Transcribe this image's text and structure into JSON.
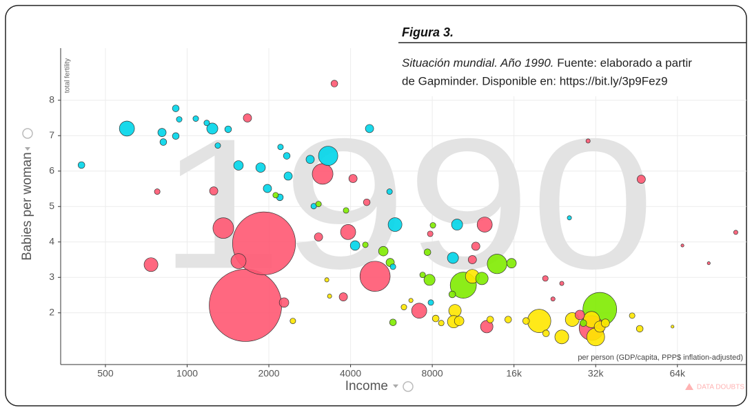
{
  "chart_data": {
    "type": "bubble",
    "figure_label": "Figura 3.",
    "caption_italic": "Situación mundial. Año 1990.",
    "caption_line1": "Fuente: elaborado a partir",
    "caption_line2": "de Gapminder. Disponible en: https://bit.ly/3p9Fez9",
    "watermark": "1990",
    "y_label": "Babies per woman",
    "y_sublabel": "total fertility",
    "x_label": "Income",
    "x_sublabel": "per person (GDP/capita, PPP$ inflation-adjusted)",
    "data_doubts": "DATA DOUBTS",
    "xscale": "log",
    "grid": true,
    "xlim": [
      342,
      115000
    ],
    "ylim": [
      0.54,
      9.47
    ],
    "xticks": [
      500,
      1000,
      2000,
      4000,
      8000,
      {
        "value": 16000,
        "label": "16k"
      },
      {
        "value": 32000,
        "label": "32k"
      },
      {
        "value": 64000,
        "label": "64k"
      }
    ],
    "yticks": [
      2,
      3,
      4,
      5,
      6,
      7,
      8
    ],
    "series": [
      {
        "color": "#00d5e9",
        "x": [
          408,
          600,
          808,
          908,
          817,
          935,
          908,
          1076,
          1238,
          1181,
          1416,
          1546,
          1297,
          1865,
          1976,
          2208,
          2356,
          2328,
          2196,
          2840,
          3308,
          4698,
          5834,
          4156,
          9874,
          9535,
          5732,
          25600,
          2927,
          7905,
          5568
        ],
        "values": [
          6.17,
          7.2,
          7.09,
          7.77,
          6.82,
          7.46,
          6.99,
          7.48,
          7.2,
          7.36,
          7.18,
          6.16,
          6.72,
          6.1,
          5.51,
          6.68,
          5.86,
          6.43,
          5.26,
          6.33,
          6.43,
          7.2,
          4.49,
          3.9,
          4.49,
          3.55,
          3.3,
          4.68,
          5.01,
          2.29,
          5.42
        ],
        "sizes": [
          10,
          50,
          15,
          10,
          10,
          7,
          10,
          7,
          27,
          7,
          10,
          20,
          7,
          20,
          15,
          7,
          15,
          10,
          10,
          15,
          82,
          15,
          42,
          20,
          27,
          27,
          7,
          4,
          7,
          7,
          7
        ]
      },
      {
        "color": "#ff5872",
        "x": [
          3487,
          1668,
          776,
          736,
          1253,
          1359,
          1546,
          1640,
          1920,
          2275,
          3156,
          4084,
          3918,
          3048,
          4924,
          3762,
          4589,
          7160,
          12480,
          11570,
          11240,
          12700,
          30900,
          47100,
          105000,
          20880,
          24000,
          27970,
          22270,
          7862,
          30000,
          83500,
          66800
        ],
        "values": [
          8.47,
          7.5,
          5.42,
          3.36,
          5.44,
          4.39,
          3.46,
          2.21,
          3.96,
          2.29,
          5.92,
          5.79,
          4.28,
          4.14,
          3.03,
          2.45,
          5.12,
          2.06,
          4.49,
          3.88,
          3.5,
          1.61,
          1.57,
          5.77,
          4.27,
          2.97,
          2.83,
          1.94,
          2.39,
          4.23,
          6.85,
          3.4,
          3.9
        ],
        "sizes": [
          10,
          15,
          7,
          42,
          15,
          94,
          50,
          1150,
          870,
          20,
          94,
          15,
          50,
          15,
          200,
          15,
          10,
          50,
          50,
          15,
          15,
          34,
          135,
          15,
          4,
          7,
          4,
          20,
          4,
          7,
          4,
          2,
          2
        ]
      },
      {
        "color": "#7feb00",
        "x": [
          2119,
          3048,
          3850,
          5282,
          4535,
          5598,
          5732,
          7680,
          7815,
          10410,
          12190,
          13860,
          15670,
          33140,
          7372,
          9481,
          8045,
          28810
        ],
        "values": [
          5.32,
          5.07,
          4.89,
          3.74,
          3.92,
          3.42,
          1.73,
          3.71,
          2.93,
          2.78,
          2.97,
          3.38,
          3.4,
          2.1,
          3.07,
          2.52,
          4.47,
          1.71
        ],
        "sizes": [
          7,
          7,
          7,
          20,
          7,
          15,
          10,
          10,
          27,
          150,
          34,
          84,
          20,
          250,
          7,
          10,
          7,
          10
        ]
      },
      {
        "color": "#ffe700",
        "x": [
          2452,
          3348,
          3270,
          11240,
          9700,
          9594,
          10050,
          8634,
          8237,
          13080,
          15230,
          17730,
          19810,
          21000,
          24000,
          26230,
          30900,
          32000,
          33140,
          34740,
          43600,
          46500,
          6674,
          6290,
          61400
        ],
        "values": [
          1.77,
          2.47,
          2.93,
          3.03,
          2.06,
          1.75,
          1.77,
          1.71,
          1.84,
          1.81,
          1.81,
          1.77,
          1.77,
          1.42,
          1.32,
          1.81,
          1.81,
          1.32,
          1.61,
          1.71,
          1.92,
          1.55,
          2.35,
          2.16,
          1.61
        ],
        "sizes": [
          7,
          4,
          4,
          42,
          34,
          34,
          20,
          7,
          10,
          10,
          10,
          10,
          120,
          10,
          42,
          42,
          58,
          70,
          27,
          15,
          7,
          10,
          4,
          7,
          2
        ]
      }
    ]
  }
}
